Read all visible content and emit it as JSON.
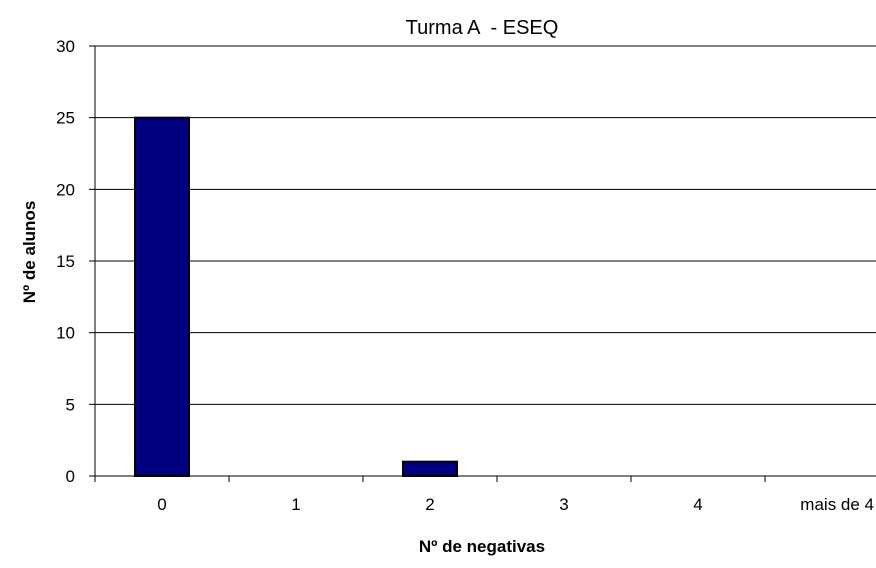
{
  "chart_data": {
    "type": "bar",
    "title": "Turma A  - ESEQ",
    "xlabel": "Nº de negativas",
    "ylabel": "Nº de alunos",
    "categories": [
      "0",
      "1",
      "2",
      "3",
      "4",
      "mais de 4"
    ],
    "series": [
      {
        "values": [
          25,
          0,
          1,
          0,
          0,
          0
        ]
      }
    ],
    "ylim": [
      0,
      30
    ],
    "yticks": [
      "0",
      "5",
      "10",
      "15",
      "20",
      "25",
      "30"
    ],
    "grid": true,
    "legend": "none",
    "colors": {
      "bar_fill": "#000080",
      "bar_stroke": "#000000",
      "gridline": "#000000",
      "axis": "#000000",
      "background": "#ffffff"
    }
  }
}
